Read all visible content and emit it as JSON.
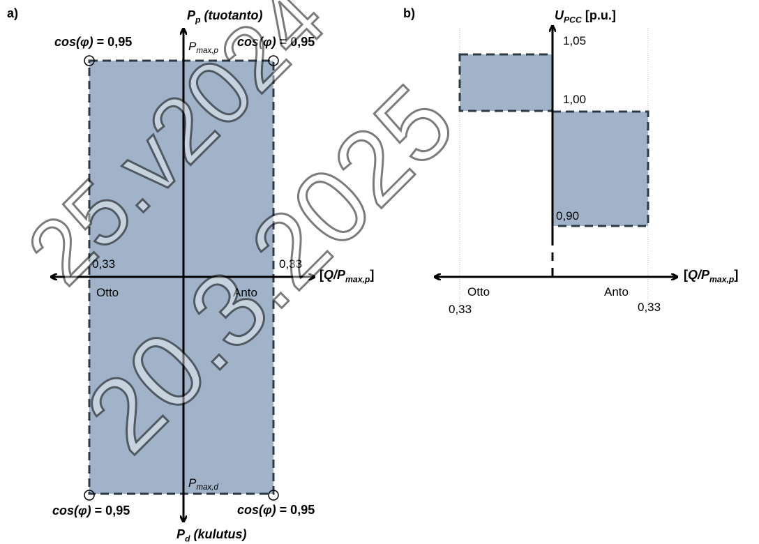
{
  "colors": {
    "fill": "#a0b3c8",
    "dash": "#2c3a48",
    "axis": "#000000",
    "grid": "#b8b8b8"
  },
  "panel_a": {
    "label": "a)",
    "y_top": {
      "main": "P",
      "sub": "p",
      "suffix": " (tuotanto)"
    },
    "y_bottom": {
      "main": "P",
      "sub": "d",
      "suffix": " (kulutus)"
    },
    "x_axis": {
      "open": "[",
      "main": "Q/P",
      "sub": "max,p",
      "close": "]"
    },
    "pmax_p": {
      "main": "P",
      "sub": "max,p"
    },
    "pmax_d": {
      "main": "P",
      "sub": "max,d"
    },
    "cos_label": {
      "func": "cos(φ)",
      "value": " = 0,95"
    },
    "left_value": "0,33",
    "right_value": "0,33",
    "otto": "Otto",
    "anto": "Anto"
  },
  "panel_b": {
    "label": "b)",
    "y_axis": {
      "main": "U",
      "sub": "PCC",
      "unit": " [p.u.]"
    },
    "x_axis": {
      "open": "[",
      "main": "Q/P",
      "sub": "max,p",
      "close": "]"
    },
    "v_105": "1,05",
    "v_100": "1,00",
    "v_090": "0,90",
    "left_value": "0,33",
    "right_value": "0,33",
    "otto": "Otto",
    "anto": "Anto"
  },
  "watermark": {
    "line1": "25.v2024",
    "line2": "20.3.2025"
  }
}
